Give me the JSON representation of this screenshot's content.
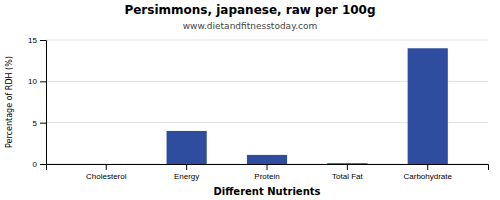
{
  "chart_data": {
    "type": "bar",
    "title": "Persimmons, japanese, raw per 100g",
    "subtitle": "www.dietandfitnesstoday.com",
    "xlabel": "Different Nutrients",
    "ylabel": "Percentage of RDH (%)",
    "categories": [
      "Cholesterol",
      "Energy",
      "Protein",
      "Total Fat",
      "Carbohydrate"
    ],
    "values": [
      0,
      4.0,
      1.1,
      0.1,
      14.0
    ],
    "color": "#2e4d9e",
    "ylim": [
      0,
      15
    ],
    "yticks": [
      0,
      5,
      10,
      15
    ],
    "grid": true
  }
}
